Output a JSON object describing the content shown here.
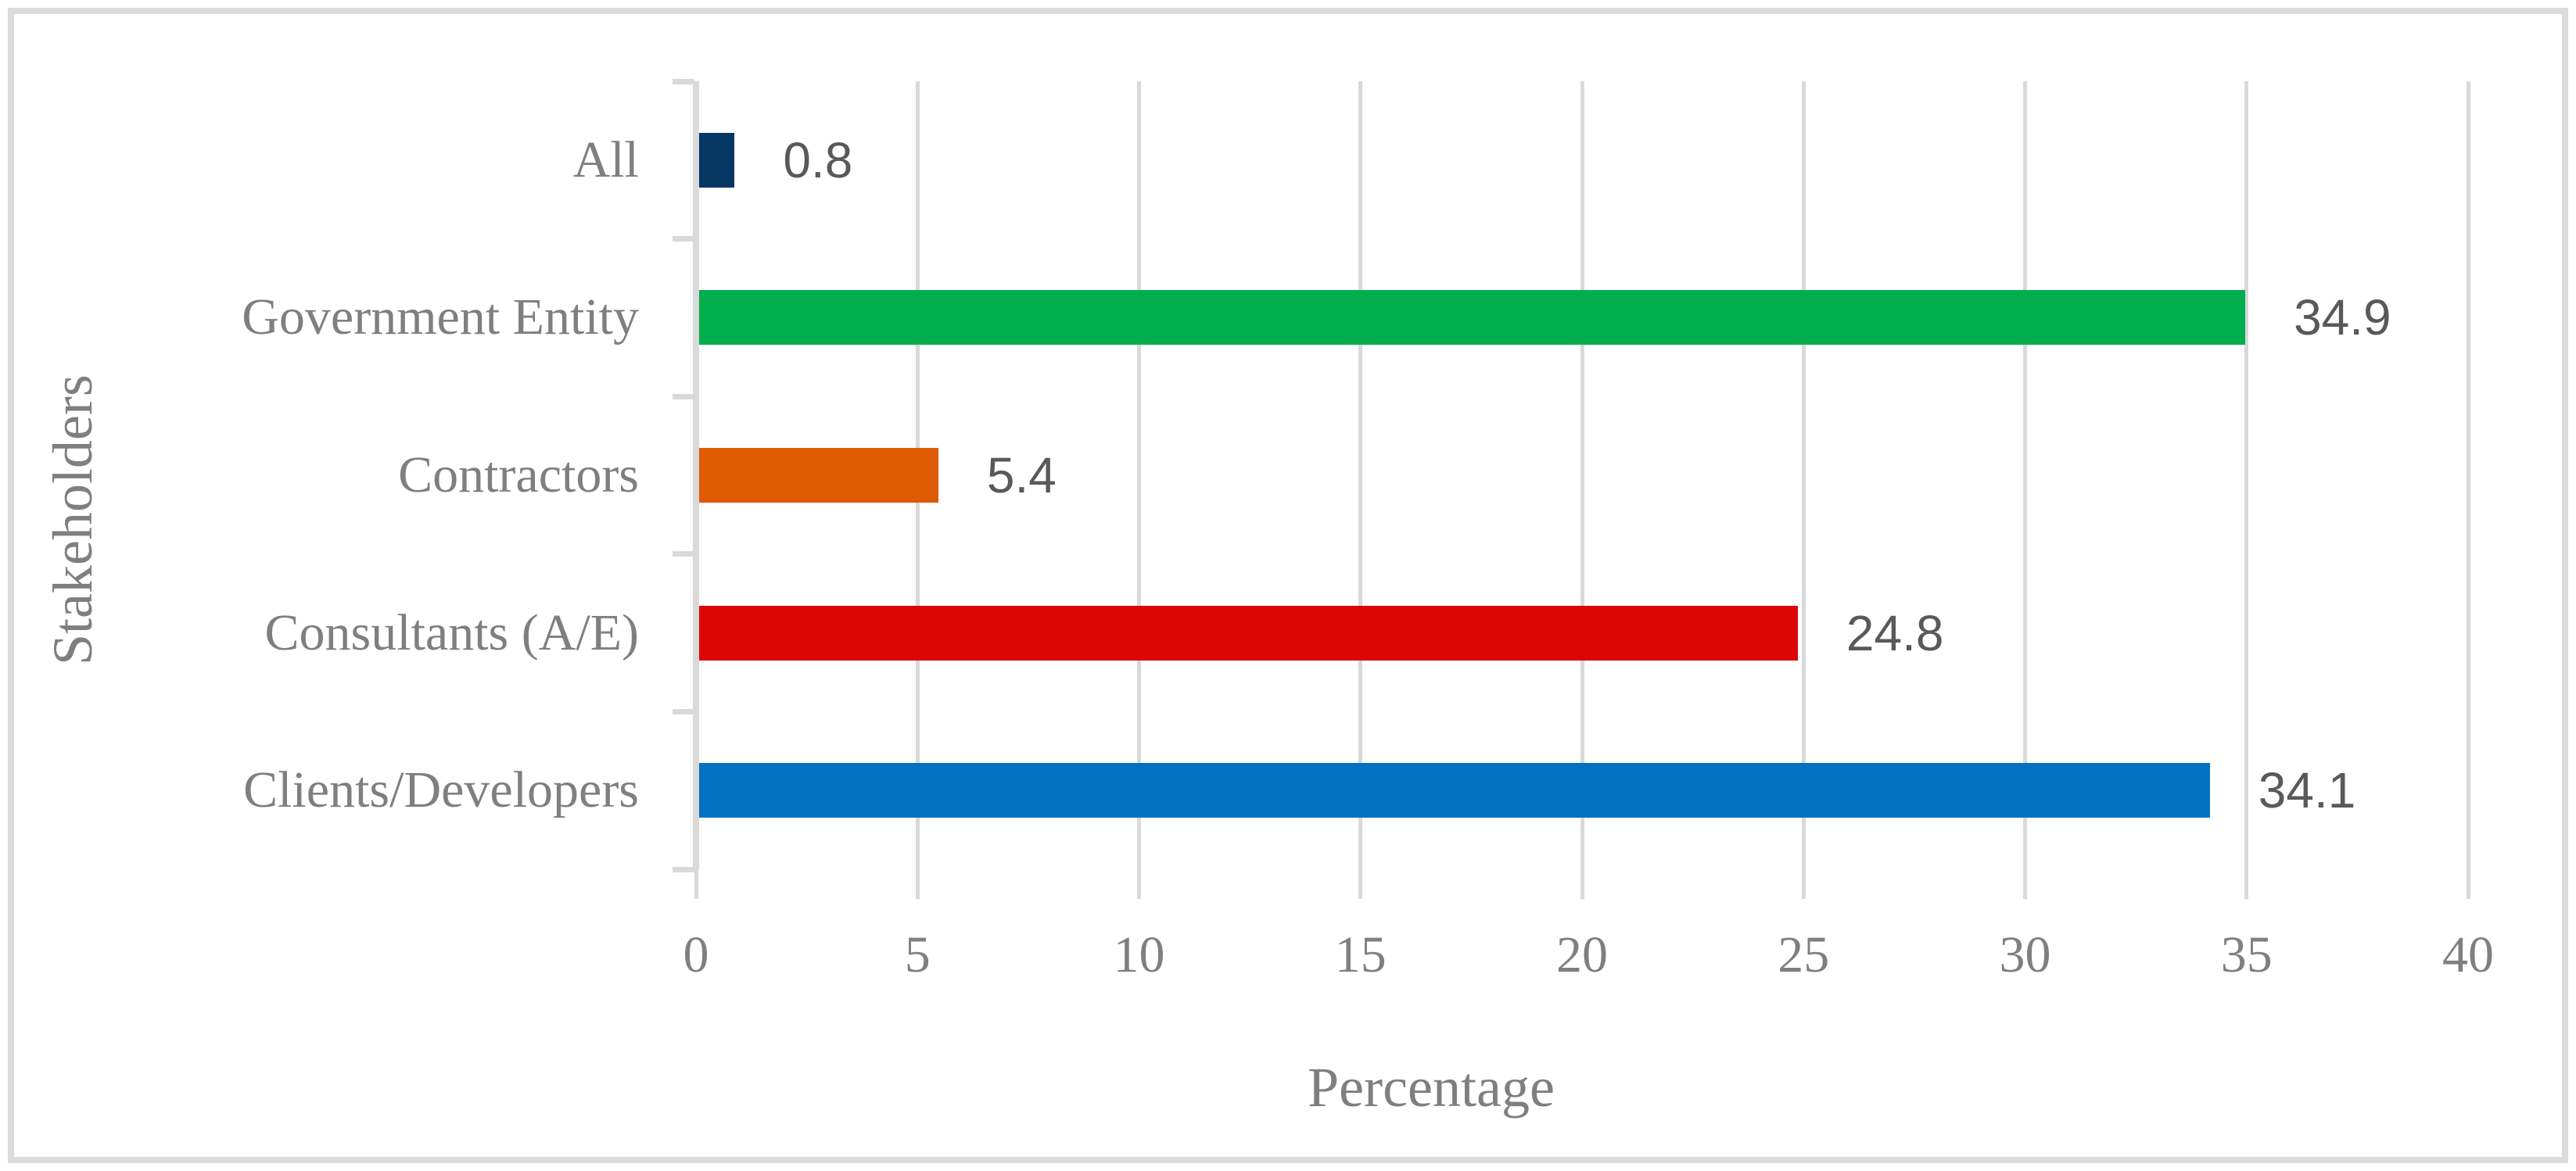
{
  "chart_data": {
    "type": "bar",
    "orientation": "horizontal",
    "title": "",
    "categories": [
      "All",
      "Government Entity",
      "Contractors",
      "Consultants (A/E)",
      "Clients/Developers"
    ],
    "values": [
      0.8,
      34.9,
      5.4,
      24.8,
      34.1
    ],
    "value_labels": [
      "0.8",
      "34.9",
      "5.4",
      "24.8",
      "34.1"
    ],
    "bar_colors": [
      "#073763",
      "#00AE4D",
      "#DE5A03",
      "#DD0404",
      "#0371C1"
    ],
    "xlabel": "Percentage",
    "ylabel": "Stakeholders",
    "xlim": [
      0,
      40
    ],
    "x_ticks": [
      0,
      5,
      10,
      15,
      20,
      25,
      30,
      35,
      40
    ],
    "grid": "vertical-major",
    "legend": "none"
  },
  "colors": {
    "gridline": "#D9D9D9",
    "frame_border": "#DBDBDB",
    "axis_text": "#7F7F7F",
    "value_text": "#595959",
    "background": "#FFFFFF"
  }
}
